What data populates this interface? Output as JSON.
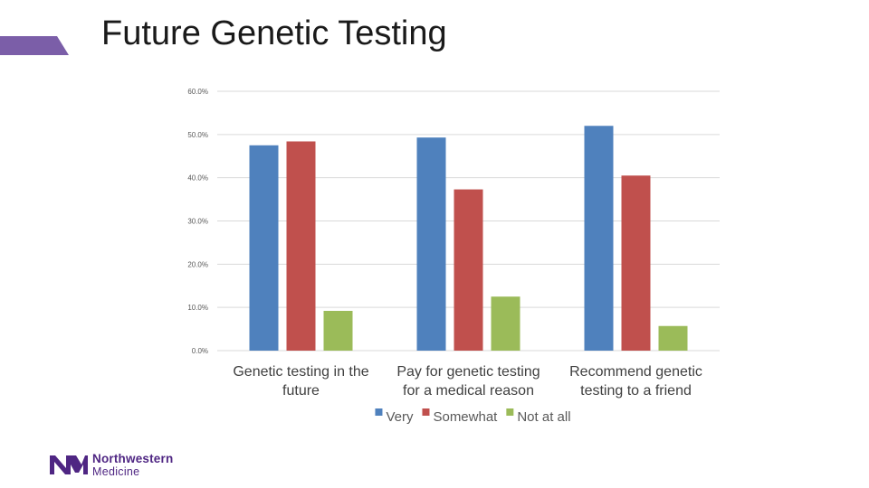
{
  "slide": {
    "title": "Future Genetic Testing"
  },
  "colors": {
    "accent": "#7b5ea8",
    "grid": "#d9d9d9",
    "text": "#404040",
    "brand": "#4f2683"
  },
  "logo": {
    "icon": "northwestern-medicine-logo-icon",
    "line1": "Northwestern",
    "line2": "Medicine"
  },
  "chart_data": {
    "type": "bar",
    "title": "",
    "xlabel": "",
    "ylabel": "",
    "ylim": [
      0,
      60
    ],
    "yticks": [
      "0.0%",
      "10.0%",
      "20.0%",
      "30.0%",
      "40.0%",
      "50.0%",
      "60.0%"
    ],
    "grid": true,
    "legend_position": "bottom",
    "categories": [
      [
        "Genetic testing in the",
        "future"
      ],
      [
        "Pay for genetic testing",
        "for a medical reason"
      ],
      [
        "Recommend genetic",
        "testing to a friend"
      ]
    ],
    "series": [
      {
        "name": "Very",
        "color": "#4f81bd",
        "values": [
          47.5,
          49.3,
          52.0
        ]
      },
      {
        "name": "Somewhat",
        "color": "#c0504d",
        "values": [
          48.4,
          37.3,
          40.5
        ]
      },
      {
        "name": "Not at all",
        "color": "#9bbb59",
        "values": [
          9.2,
          12.5,
          5.7
        ]
      }
    ]
  }
}
